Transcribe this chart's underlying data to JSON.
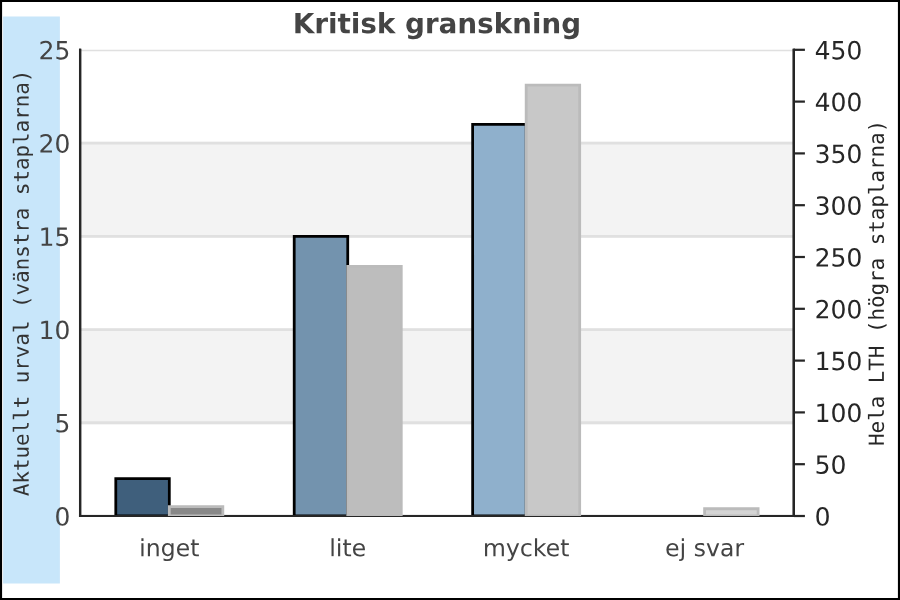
{
  "chart_data": {
    "type": "bar",
    "title": "Kritisk granskning",
    "categories": [
      "inget",
      "lite",
      "mycket",
      "ej svar"
    ],
    "ylabel": "Aktuellt urval (vänstra staplarna)",
    "y2label": "Hela LTH (högra staplarna)",
    "series": [
      {
        "colors": [
          "#3f5f7c",
          "#7393ae",
          "#8fb0cc",
          null
        ],
        "values": [
          2,
          15,
          21,
          0
        ]
      },
      {
        "axis": "y2",
        "colors": [
          "#888888",
          "#bdbdbd",
          "#c8c8c8",
          "#d4d4d4"
        ],
        "values": [
          9,
          241,
          416,
          7
        ]
      }
    ],
    "ylim": [
      0,
      25
    ],
    "yticks": [
      0,
      5,
      10,
      15,
      20,
      25
    ],
    "y2lim": [
      0,
      450
    ],
    "y2ticks": [
      0,
      50,
      100,
      150,
      200,
      250,
      300,
      350,
      400,
      450
    ],
    "bands": [
      {
        "axis": "y",
        "from": 5,
        "to": 10,
        "color": "#f3f3f3"
      },
      {
        "axis": "y",
        "from": 15,
        "to": 20,
        "color": "#f3f3f3"
      }
    ],
    "grid": "y"
  }
}
